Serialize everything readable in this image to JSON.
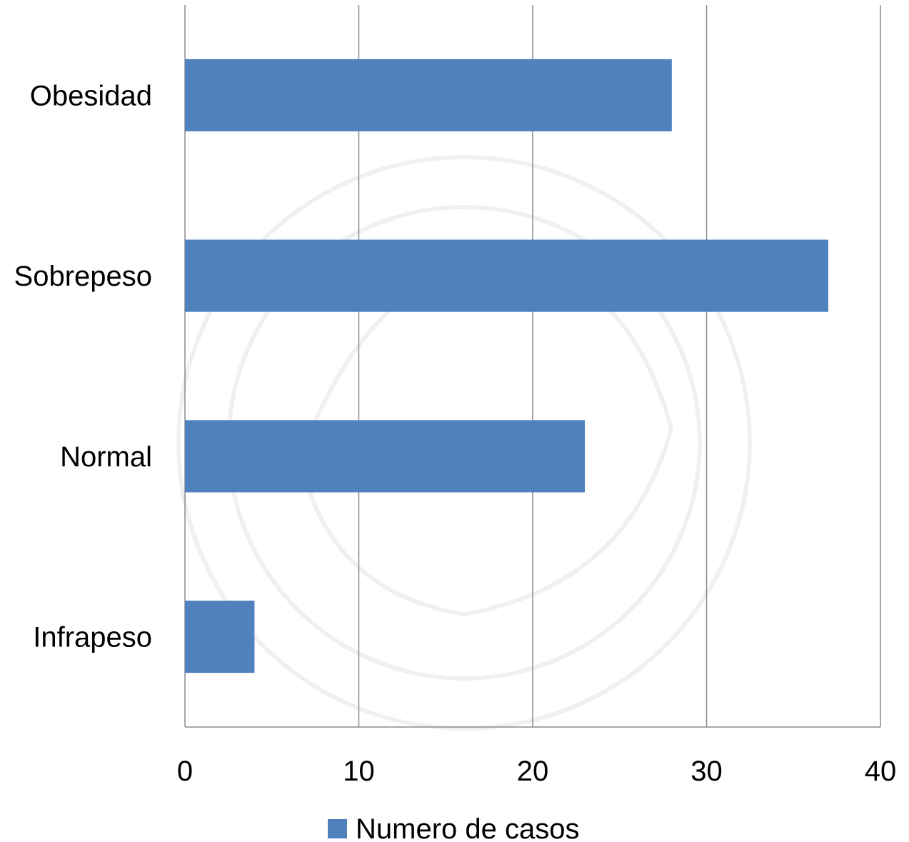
{
  "chart_data": {
    "type": "bar",
    "orientation": "horizontal",
    "categories": [
      "Infrapeso",
      "Normal",
      "Sobrepeso",
      "Obesidad"
    ],
    "series": [
      {
        "name": "Numero de casos",
        "values": [
          4,
          23,
          37,
          28
        ]
      }
    ],
    "xlim": [
      0,
      40
    ],
    "x_ticks": [
      "0",
      "10",
      "20",
      "30",
      "40"
    ],
    "grid": true,
    "legend": "bottom",
    "colors": {
      "bar": "#4f81bd",
      "grid": "#8c8c8c"
    }
  }
}
